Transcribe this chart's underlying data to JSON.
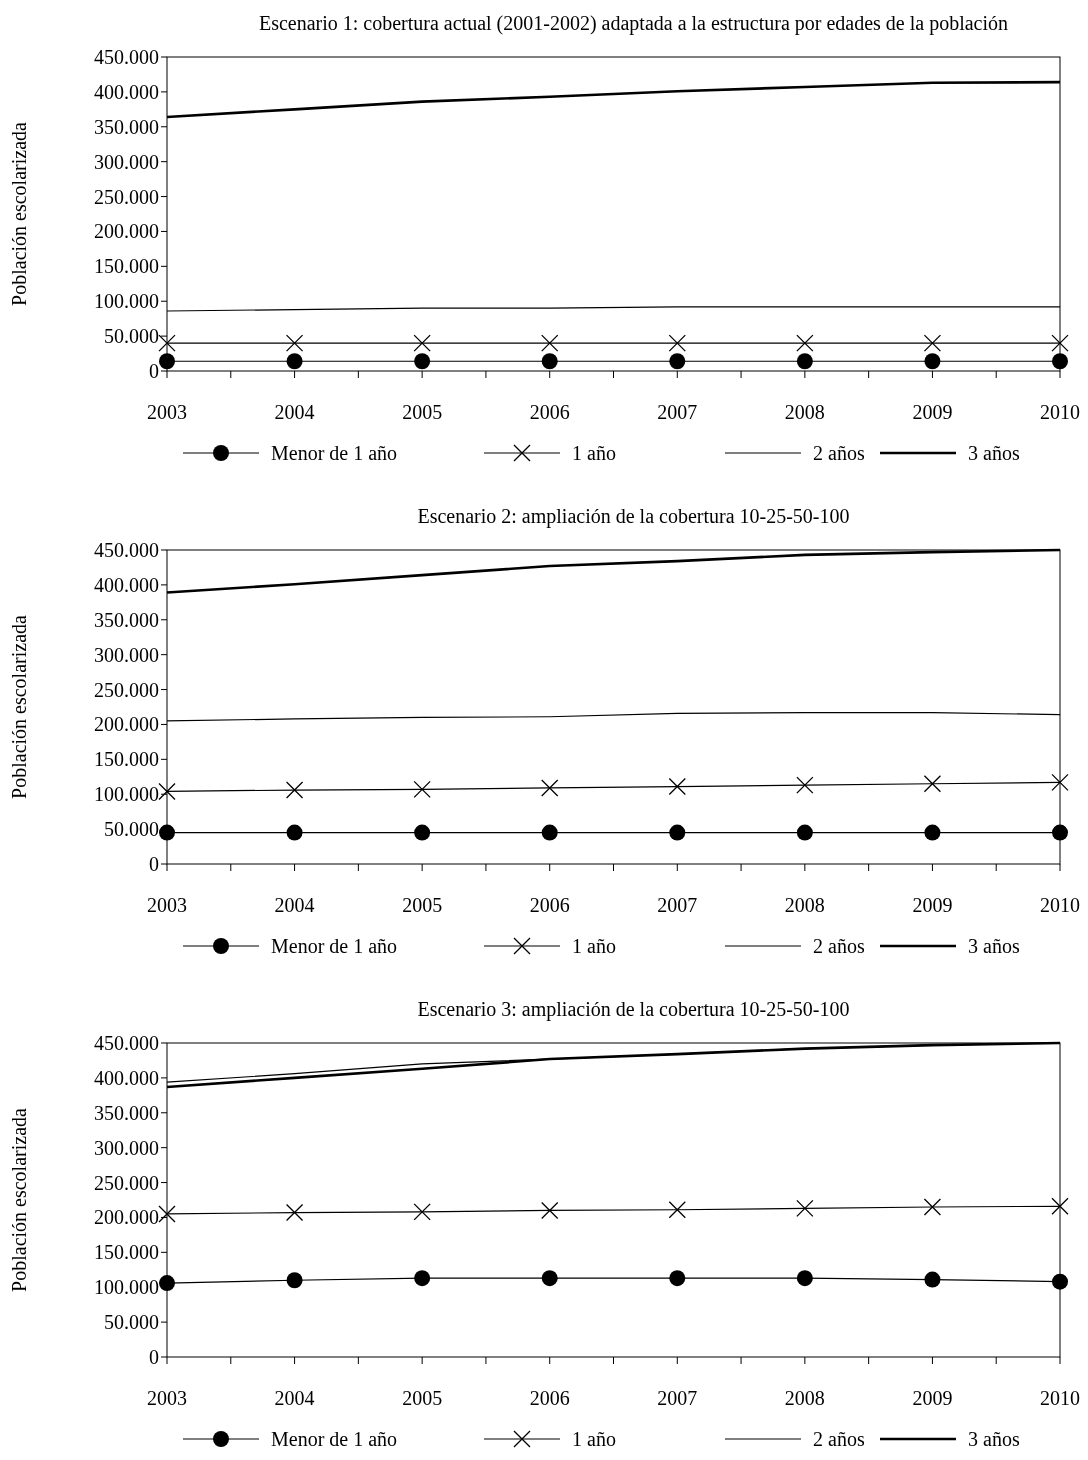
{
  "chart_data": [
    {
      "type": "line",
      "title": "Escenario 1: cobertura actual (2001-2002) adaptada a la estructura por edades de la población",
      "ylabel": "Población escolarizada",
      "categories": [
        "2003",
        "2004",
        "2005",
        "2006",
        "2007",
        "2008",
        "2009",
        "2010"
      ],
      "ylim": [
        0,
        450000
      ],
      "yticks": [
        {
          "value": 0,
          "label": "0"
        },
        {
          "value": 50000,
          "label": "50.000"
        },
        {
          "value": 100000,
          "label": "100.000"
        },
        {
          "value": 150000,
          "label": "150.000"
        },
        {
          "value": 200000,
          "label": "200.000"
        },
        {
          "value": 250000,
          "label": "250.000"
        },
        {
          "value": 300000,
          "label": "300.000"
        },
        {
          "value": 350000,
          "label": "350.000"
        },
        {
          "value": 400000,
          "label": "400.000"
        },
        {
          "value": 450000,
          "label": "450.000"
        }
      ],
      "grid": false,
      "legend": "bottom",
      "series": [
        {
          "name": "Menor de 1 año",
          "color": "#000000",
          "marker": "circle",
          "values": [
            14000,
            14000,
            14000,
            14000,
            14000,
            14000,
            14000,
            14000
          ]
        },
        {
          "name": "1 año",
          "color": "#000000",
          "marker": "cross",
          "values": [
            40000,
            40000,
            40000,
            40000,
            40000,
            40000,
            40000,
            40000
          ]
        },
        {
          "name": "2 años",
          "color": "#000000",
          "marker": "none",
          "values": [
            86000,
            88000,
            90000,
            90000,
            92000,
            92000,
            92000,
            92000
          ]
        },
        {
          "name": "3 años",
          "color": "#000000",
          "marker": "none",
          "values": [
            364000,
            375000,
            386000,
            393000,
            401000,
            407000,
            413000,
            414000
          ]
        }
      ]
    },
    {
      "type": "line",
      "title": "Escenario 2: ampliación de la cobertura 10-25-50-100",
      "ylabel": "Población escolarizada",
      "categories": [
        "2003",
        "2004",
        "2005",
        "2006",
        "2007",
        "2008",
        "2009",
        "2010"
      ],
      "ylim": [
        0,
        450000
      ],
      "yticks": [
        {
          "value": 0,
          "label": "0"
        },
        {
          "value": 50000,
          "label": "50.000"
        },
        {
          "value": 100000,
          "label": "100.000"
        },
        {
          "value": 150000,
          "label": "150.000"
        },
        {
          "value": 200000,
          "label": "200.000"
        },
        {
          "value": 250000,
          "label": "250.000"
        },
        {
          "value": 300000,
          "label": "300.000"
        },
        {
          "value": 350000,
          "label": "350.000"
        },
        {
          "value": 400000,
          "label": "400.000"
        },
        {
          "value": 450000,
          "label": "450.000"
        }
      ],
      "grid": false,
      "legend": "bottom",
      "series": [
        {
          "name": "Menor de 1 año",
          "color": "#000000",
          "marker": "circle",
          "values": [
            45000,
            45000,
            45000,
            45000,
            45000,
            45000,
            45000,
            45000
          ]
        },
        {
          "name": "1 año",
          "color": "#000000",
          "marker": "cross",
          "values": [
            104000,
            106000,
            107000,
            109000,
            111000,
            113000,
            115000,
            117000
          ]
        },
        {
          "name": "2 años",
          "color": "#000000",
          "marker": "none",
          "values": [
            205000,
            208000,
            210000,
            211000,
            216000,
            217000,
            217000,
            214000
          ]
        },
        {
          "name": "3 años",
          "color": "#000000",
          "marker": "none",
          "values": [
            389000,
            401000,
            414000,
            427000,
            434000,
            443000,
            447000,
            450000
          ]
        }
      ]
    },
    {
      "type": "line",
      "title": "Escenario 3: ampliación de la cobertura 10-25-50-100",
      "ylabel": "Población escolarizada",
      "categories": [
        "2003",
        "2004",
        "2005",
        "2006",
        "2007",
        "2008",
        "2009",
        "2010"
      ],
      "ylim": [
        0,
        450000
      ],
      "yticks": [
        {
          "value": 0,
          "label": "0"
        },
        {
          "value": 50000,
          "label": "50.000"
        },
        {
          "value": 100000,
          "label": "100.000"
        },
        {
          "value": 150000,
          "label": "150.000"
        },
        {
          "value": 200000,
          "label": "200.000"
        },
        {
          "value": 250000,
          "label": "250.000"
        },
        {
          "value": 300000,
          "label": "300.000"
        },
        {
          "value": 350000,
          "label": "350.000"
        },
        {
          "value": 400000,
          "label": "400.000"
        },
        {
          "value": 450000,
          "label": "450.000"
        }
      ],
      "grid": false,
      "legend": "bottom",
      "series": [
        {
          "name": "Menor de 1 año",
          "color": "#000000",
          "marker": "circle",
          "values": [
            106000,
            110000,
            113000,
            113000,
            113000,
            113000,
            111000,
            108000
          ]
        },
        {
          "name": "1 año",
          "color": "#000000",
          "marker": "cross",
          "values": [
            205000,
            207000,
            208000,
            210000,
            211000,
            213000,
            215000,
            216000
          ]
        },
        {
          "name": "2 años",
          "color": "#000000",
          "marker": "none",
          "values": [
            394000,
            406000,
            420000,
            427000,
            434000,
            442000,
            447000,
            450000
          ]
        },
        {
          "name": "3 años",
          "color": "#000000",
          "marker": "none",
          "values": [
            387000,
            400000,
            413000,
            427000,
            434000,
            442000,
            447000,
            450000
          ]
        }
      ]
    }
  ]
}
